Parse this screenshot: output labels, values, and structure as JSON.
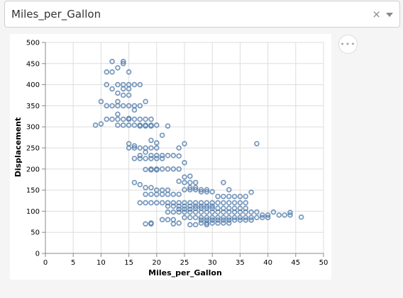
{
  "field_select": {
    "selected": "Miles_per_Gallon",
    "clear_icon": "×",
    "arrow_icon": "chevron-down-icon"
  },
  "actions_menu": {
    "icon": "ellipsis-icon",
    "glyph": "•••"
  },
  "colors": {
    "point_stroke": "#4c78a8",
    "grid": "#dddddd",
    "axis": "#888888"
  },
  "chart_data": {
    "type": "scatter",
    "title": "",
    "xlabel": "Miles_per_Gallon",
    "ylabel": "Displacement",
    "xlim": [
      0,
      50
    ],
    "ylim": [
      0,
      500
    ],
    "xticks": [
      0,
      5,
      10,
      15,
      20,
      25,
      30,
      35,
      40,
      45,
      50
    ],
    "yticks": [
      0,
      50,
      100,
      150,
      200,
      250,
      300,
      350,
      400,
      450,
      500
    ],
    "grid": true,
    "points": [
      [
        12,
        455
      ],
      [
        14,
        455
      ],
      [
        14,
        450
      ],
      [
        13,
        440
      ],
      [
        15,
        430
      ],
      [
        11,
        430
      ],
      [
        12,
        430
      ],
      [
        15,
        400
      ],
      [
        14,
        400
      ],
      [
        16,
        400
      ],
      [
        17,
        400
      ],
      [
        13,
        400
      ],
      [
        11,
        400
      ],
      [
        14,
        390
      ],
      [
        15,
        390
      ],
      [
        12,
        390
      ],
      [
        13,
        380
      ],
      [
        14,
        375
      ],
      [
        15,
        375
      ],
      [
        13,
        360
      ],
      [
        10,
        360
      ],
      [
        14,
        350
      ],
      [
        15,
        350
      ],
      [
        16,
        350
      ],
      [
        17,
        350
      ],
      [
        18,
        360
      ],
      [
        13,
        350
      ],
      [
        12,
        350
      ],
      [
        11,
        350
      ],
      [
        16,
        340
      ],
      [
        13,
        330
      ],
      [
        15,
        320
      ],
      [
        14,
        318
      ],
      [
        16,
        318
      ],
      [
        12,
        318
      ],
      [
        15,
        318
      ],
      [
        13,
        318
      ],
      [
        17,
        318
      ],
      [
        18,
        318
      ],
      [
        19,
        318
      ],
      [
        11,
        318
      ],
      [
        9,
        304
      ],
      [
        10,
        307
      ],
      [
        13,
        304
      ],
      [
        14,
        304
      ],
      [
        15,
        304
      ],
      [
        16,
        304
      ],
      [
        17,
        304
      ],
      [
        18,
        304
      ],
      [
        19,
        304
      ],
      [
        20,
        304
      ],
      [
        22,
        302
      ],
      [
        18,
        302
      ],
      [
        19,
        302
      ],
      [
        17,
        302
      ],
      [
        21,
        280
      ],
      [
        19,
        268
      ],
      [
        20,
        262
      ],
      [
        38,
        260
      ],
      [
        15,
        260
      ],
      [
        16,
        250
      ],
      [
        17,
        250
      ],
      [
        18,
        250
      ],
      [
        19,
        250
      ],
      [
        20,
        250
      ],
      [
        15,
        250
      ],
      [
        16,
        255
      ],
      [
        25,
        260
      ],
      [
        18,
        240
      ],
      [
        19,
        232
      ],
      [
        17,
        232
      ],
      [
        20,
        232
      ],
      [
        21,
        232
      ],
      [
        22,
        232
      ],
      [
        23,
        232
      ],
      [
        18,
        225
      ],
      [
        19,
        225
      ],
      [
        20,
        225
      ],
      [
        21,
        225
      ],
      [
        16,
        225
      ],
      [
        17,
        225
      ],
      [
        24,
        250
      ],
      [
        20,
        200
      ],
      [
        21,
        200
      ],
      [
        22,
        200
      ],
      [
        19,
        200
      ],
      [
        23,
        200
      ],
      [
        24,
        200
      ],
      [
        25,
        181
      ],
      [
        26,
        183
      ],
      [
        20,
        198
      ],
      [
        19,
        198
      ],
      [
        18,
        199
      ],
      [
        24,
        231
      ],
      [
        25,
        215
      ],
      [
        28,
        151
      ],
      [
        27,
        151
      ],
      [
        29,
        151
      ],
      [
        25,
        151
      ],
      [
        26,
        151
      ],
      [
        24,
        140
      ],
      [
        23,
        140
      ],
      [
        22,
        140
      ],
      [
        21,
        140
      ],
      [
        20,
        140
      ],
      [
        19,
        140
      ],
      [
        18,
        140
      ],
      [
        26,
        168
      ],
      [
        27,
        168
      ],
      [
        25,
        168
      ],
      [
        24,
        171
      ],
      [
        26,
        156
      ],
      [
        27,
        156
      ],
      [
        28,
        146
      ],
      [
        29,
        146
      ],
      [
        30,
        146
      ],
      [
        20,
        150
      ],
      [
        21,
        150
      ],
      [
        22,
        150
      ],
      [
        18,
        156
      ],
      [
        19,
        156
      ],
      [
        17,
        163
      ],
      [
        16,
        168
      ],
      [
        33,
        151
      ],
      [
        32,
        168
      ],
      [
        31,
        120
      ],
      [
        30,
        120
      ],
      [
        29,
        120
      ],
      [
        28,
        120
      ],
      [
        27,
        120
      ],
      [
        26,
        120
      ],
      [
        25,
        120
      ],
      [
        24,
        120
      ],
      [
        23,
        120
      ],
      [
        22,
        120
      ],
      [
        21,
        120
      ],
      [
        20,
        120
      ],
      [
        19,
        120
      ],
      [
        18,
        120
      ],
      [
        17,
        120
      ],
      [
        34,
        135
      ],
      [
        33,
        135
      ],
      [
        32,
        135
      ],
      [
        31,
        135
      ],
      [
        35,
        135
      ],
      [
        36,
        135
      ],
      [
        37,
        145
      ],
      [
        36,
        120
      ],
      [
        35,
        120
      ],
      [
        34,
        120
      ],
      [
        33,
        120
      ],
      [
        32,
        120
      ],
      [
        30,
        112
      ],
      [
        29,
        112
      ],
      [
        28,
        112
      ],
      [
        27,
        112
      ],
      [
        26,
        112
      ],
      [
        25,
        112
      ],
      [
        24,
        112
      ],
      [
        23,
        112
      ],
      [
        22,
        112
      ],
      [
        36,
        107
      ],
      [
        35,
        107
      ],
      [
        34,
        107
      ],
      [
        33,
        107
      ],
      [
        32,
        107
      ],
      [
        31,
        107
      ],
      [
        30,
        107
      ],
      [
        29,
        107
      ],
      [
        28,
        107
      ],
      [
        27,
        107
      ],
      [
        26,
        105
      ],
      [
        25,
        105
      ],
      [
        24,
        105
      ],
      [
        38,
        98
      ],
      [
        37,
        98
      ],
      [
        36,
        98
      ],
      [
        35,
        98
      ],
      [
        34,
        98
      ],
      [
        33,
        98
      ],
      [
        32,
        98
      ],
      [
        31,
        98
      ],
      [
        30,
        98
      ],
      [
        29,
        98
      ],
      [
        28,
        98
      ],
      [
        27,
        98
      ],
      [
        26,
        98
      ],
      [
        25,
        98
      ],
      [
        24,
        98
      ],
      [
        23,
        98
      ],
      [
        22,
        98
      ],
      [
        44,
        97
      ],
      [
        43,
        91
      ],
      [
        44,
        91
      ],
      [
        46,
        86
      ],
      [
        41,
        98
      ],
      [
        40,
        85
      ],
      [
        39,
        85
      ],
      [
        38,
        85
      ],
      [
        37,
        85
      ],
      [
        36,
        85
      ],
      [
        35,
        85
      ],
      [
        34,
        85
      ],
      [
        33,
        85
      ],
      [
        32,
        85
      ],
      [
        31,
        85
      ],
      [
        30,
        85
      ],
      [
        29,
        85
      ],
      [
        28,
        85
      ],
      [
        27,
        85
      ],
      [
        26,
        85
      ],
      [
        25,
        85
      ],
      [
        33,
        79
      ],
      [
        32,
        79
      ],
      [
        31,
        79
      ],
      [
        30,
        79
      ],
      [
        29,
        79
      ],
      [
        28,
        79
      ],
      [
        35,
        79
      ],
      [
        34,
        79
      ],
      [
        36,
        79
      ],
      [
        37,
        79
      ],
      [
        31,
        72
      ],
      [
        32,
        72
      ],
      [
        30,
        72
      ],
      [
        33,
        72
      ],
      [
        29,
        72
      ],
      [
        28,
        72
      ],
      [
        27,
        68
      ],
      [
        26,
        68
      ],
      [
        24,
        72
      ],
      [
        29,
        68
      ],
      [
        18,
        70
      ],
      [
        19,
        70
      ],
      [
        19,
        72
      ],
      [
        23,
        80
      ],
      [
        21,
        80
      ],
      [
        22,
        80
      ],
      [
        23,
        70
      ],
      [
        39,
        91
      ],
      [
        40,
        91
      ],
      [
        42,
        91
      ]
    ]
  }
}
